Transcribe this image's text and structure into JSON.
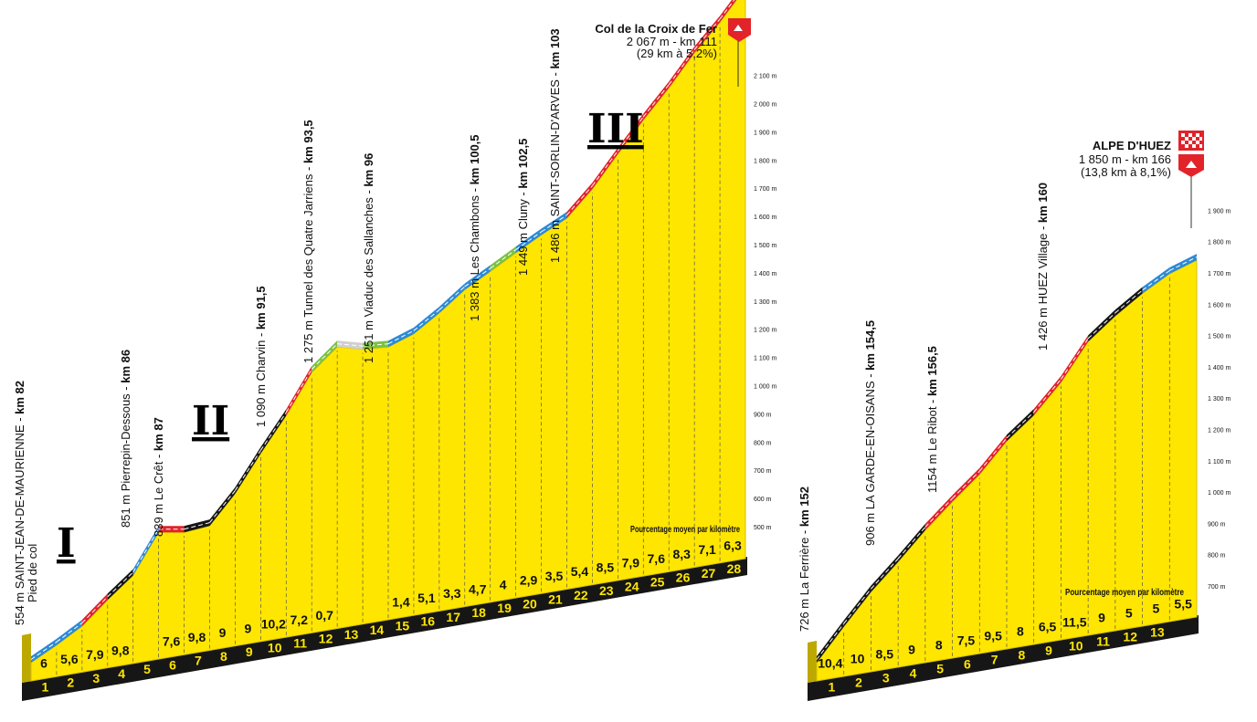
{
  "colors": {
    "profile_fill": "#ffe600",
    "base_dark": "#161616",
    "grade_green": "#7cc242",
    "grade_blue": "#2d8ad6",
    "grade_red": "#e2232a",
    "grade_black": "#161616",
    "grade_grey": "#d0d0d0",
    "flag_red": "#e2232a"
  },
  "panels": [
    {
      "name": "croix-de-fer",
      "summary": {
        "title": "Col de la Croix de Fer",
        "line1": "2 067 m - km 111",
        "line2": "(29 km à 5,2%)"
      },
      "note": "Pourcentage moyen par kilomètre",
      "altitude_axis": [
        "500 m",
        "600 m",
        "700 m",
        "800 m",
        "900 m",
        "1 000 m",
        "1 100 m",
        "1 200 m",
        "1 300 m",
        "1 400 m",
        "1 500 m",
        "1 600 m",
        "1 700 m",
        "1 800 m",
        "1 900 m",
        "2 000 m",
        "2 100 m"
      ],
      "chart_data": {
        "type": "elevation_profile",
        "unit_x": "km",
        "unit_y": "m",
        "km_labels": [
          "1",
          "2",
          "3",
          "4",
          "5",
          "6",
          "7",
          "8",
          "9",
          "10",
          "11",
          "12",
          "13",
          "14",
          "15",
          "16",
          "17",
          "18",
          "19",
          "20",
          "21",
          "22",
          "23",
          "24",
          "25",
          "26",
          "27",
          "28"
        ],
        "segment_grades": [
          "6",
          "5,6",
          "7,9",
          "9,8",
          "",
          "7,6",
          "9,8",
          "9",
          "9",
          "10,2",
          "7,2",
          "0,7",
          "",
          "",
          "1,4",
          "5,1",
          "3,3",
          "4,7",
          "4",
          "2,9",
          "3,5",
          "5,4",
          "8,5",
          "7,9",
          "7,6",
          "8,3",
          "7,1",
          "6,3"
        ],
        "segment_colors": [
          "blue",
          "blue",
          "red",
          "black",
          "",
          "red",
          "black",
          "black",
          "black",
          "black",
          "red",
          "green",
          "grey",
          "green",
          "blue",
          "blue",
          "blue",
          "blue",
          "green",
          "blue",
          "blue",
          "red",
          "red",
          "red",
          "red",
          "red",
          "red",
          "red"
        ],
        "elevations": [
          554,
          590,
          630,
          690,
          745,
          851,
          839,
          845,
          921,
          1019,
          1111,
          1217,
          1275,
          1257,
          1251,
          1275,
          1320,
          1372,
          1410,
          1449,
          1486,
          1520,
          1588,
          1672,
          1753,
          1829,
          1913,
          1985,
          2067
        ]
      },
      "waypoints": [
        {
          "name": "554 m SAINT-JEAN-DE-MAURIENNE - ",
          "km": "km 82",
          "sub": "Pied de col"
        },
        {
          "name": "851 m Pierrepin-Dessous - ",
          "km": "km 86"
        },
        {
          "name": "839 m Le Crêt - ",
          "km": "km 87"
        },
        {
          "name": "1 090 m Charvin - ",
          "km": "km 91,5"
        },
        {
          "name": "1 275 m Tunnel des Quatre Jarriens - ",
          "km": "km 93,5"
        },
        {
          "name": "1 251 m Viaduc des Sallanches - ",
          "km": "km 96"
        },
        {
          "name": "1 383 m Les Chambons - ",
          "km": "km 100,5"
        },
        {
          "name": "1 449 m Cluny - ",
          "km": "km 102,5"
        },
        {
          "name": "1 486 m SAINT-SORLIN-D'ARVES - ",
          "km": "km 103"
        }
      ],
      "sections": [
        "I",
        "II",
        "III"
      ]
    },
    {
      "name": "alpe-d-huez",
      "summary": {
        "title": "ALPE D'HUEZ",
        "line1": "1 850 m - km 166",
        "line2": "(13,8 km à 8,1%)"
      },
      "note": "Pourcentage moyen par kilomètre",
      "altitude_axis": [
        "700 m",
        "800 m",
        "900 m",
        "1 000 m",
        "1 100 m",
        "1 200 m",
        "1 300 m",
        "1 400 m",
        "1 500 m",
        "1 600 m",
        "1 700 m",
        "1 800 m",
        "1 900 m"
      ],
      "chart_data": {
        "type": "elevation_profile",
        "unit_x": "km",
        "unit_y": "m",
        "km_labels": [
          "1",
          "2",
          "3",
          "4",
          "5",
          "6",
          "7",
          "8",
          "9",
          "10",
          "11",
          "12",
          "13"
        ],
        "segment_grades": [
          "10,4",
          "10",
          "8,5",
          "9",
          "8",
          "7,5",
          "9,5",
          "8",
          "6,5",
          "11,5",
          "9",
          "5",
          "5",
          "5,5"
        ],
        "segment_colors": [
          "black",
          "black",
          "black",
          "black",
          "red",
          "red",
          "red",
          "black",
          "red",
          "red",
          "black",
          "black",
          "blue",
          "blue"
        ],
        "elevations": [
          726,
          830,
          930,
          1015,
          1105,
          1185,
          1260,
          1355,
          1426,
          1520,
          1640,
          1710,
          1770,
          1820,
          1850
        ]
      },
      "waypoints": [
        {
          "name": "726 m La Ferrière - ",
          "km": "km 152"
        },
        {
          "name": "906 m  LA GARDE-EN-OISANS - ",
          "km": "km 154,5"
        },
        {
          "name": "1154 m Le Ribot - ",
          "km": "km 156,5"
        },
        {
          "name": "1 426 m HUEZ Village - ",
          "km": "km 160"
        }
      ]
    }
  ]
}
